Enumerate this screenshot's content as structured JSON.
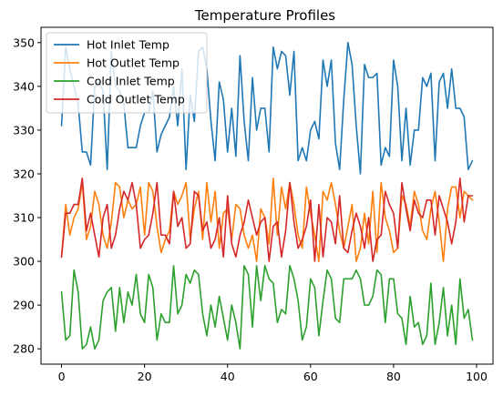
{
  "chart_data": {
    "type": "line",
    "title": "Temperature Profiles",
    "xlabel": "",
    "ylabel": "",
    "xlim": [
      -4.95,
      103.95
    ],
    "ylim": [
      276.5,
      353.5
    ],
    "xticks": [
      0,
      20,
      40,
      60,
      80,
      100
    ],
    "yticks": [
      280,
      290,
      300,
      310,
      320,
      330,
      340,
      350
    ],
    "grid": false,
    "legend_position": "top-left",
    "series": [
      {
        "name": "Hot Inlet Temp",
        "color": "#1f77b4",
        "values": [
          331,
          349,
          344,
          340,
          336,
          325,
          325,
          322,
          340,
          341,
          339,
          321,
          348,
          340,
          339,
          336,
          326,
          326,
          326,
          331,
          334,
          334,
          339,
          325,
          329,
          331,
          333,
          340,
          331,
          344,
          321,
          338,
          332,
          348,
          349,
          344,
          332,
          323,
          341,
          337,
          325,
          335,
          324,
          347,
          332,
          323,
          342,
          330,
          335,
          335,
          325,
          349,
          344,
          348,
          347,
          338,
          348,
          323,
          326,
          323,
          330,
          332,
          328,
          346,
          340,
          346,
          327,
          321,
          337,
          350,
          345,
          331,
          320,
          345,
          342,
          342,
          343,
          322,
          326,
          324,
          346,
          340,
          323,
          335,
          322,
          330,
          330,
          342,
          340,
          343,
          323,
          341,
          343,
          335,
          344,
          335,
          335,
          333,
          321,
          323
        ]
      },
      {
        "name": "Hot Outlet Temp",
        "color": "#ff7f0e",
        "values": [
          301,
          313,
          306,
          310,
          312,
          318,
          305,
          308,
          316,
          313,
          306,
          303,
          309,
          318,
          317,
          310,
          314,
          312,
          313,
          317,
          306,
          318,
          316,
          308,
          302,
          305,
          307,
          316,
          313,
          315,
          318,
          305,
          312,
          316,
          305,
          318,
          309,
          316,
          303,
          311,
          312,
          305,
          313,
          312,
          306,
          303,
          306,
          300,
          312,
          310,
          304,
          319,
          306,
          317,
          312,
          318,
          313,
          306,
          303,
          317,
          311,
          306,
          300,
          316,
          314,
          318,
          313,
          307,
          303,
          308,
          313,
          300,
          303,
          311,
          304,
          316,
          302,
          318,
          310,
          307,
          302,
          303,
          315,
          313,
          308,
          316,
          313,
          307,
          305,
          312,
          316,
          309,
          300,
          312,
          317,
          317,
          310,
          316,
          315,
          314
        ]
      },
      {
        "name": "Cold Inlet Temp",
        "color": "#2ca02c",
        "values": [
          293,
          282,
          283,
          298,
          293,
          280,
          281,
          285,
          280,
          282,
          291,
          293,
          294,
          284,
          294,
          286,
          293,
          290,
          297,
          288,
          286,
          297,
          294,
          282,
          288,
          286,
          286,
          299,
          288,
          290,
          297,
          295,
          298,
          297,
          288,
          283,
          290,
          285,
          292,
          287,
          282,
          290,
          286,
          280,
          299,
          297,
          285,
          299,
          291,
          299,
          296,
          295,
          286,
          289,
          288,
          299,
          296,
          291,
          282,
          285,
          296,
          294,
          283,
          291,
          298,
          296,
          287,
          286,
          296,
          296,
          296,
          298,
          296,
          290,
          290,
          292,
          298,
          297,
          286,
          296,
          296,
          288,
          287,
          281,
          292,
          285,
          286,
          281,
          283,
          295,
          281,
          286,
          294,
          283,
          290,
          281,
          296,
          287,
          289,
          282
        ]
      },
      {
        "name": "Cold Outlet Temp",
        "color": "#d62728",
        "values": [
          301,
          311,
          311,
          313,
          313,
          319,
          307,
          311,
          306,
          301,
          310,
          313,
          303,
          306,
          312,
          316,
          314,
          318,
          313,
          303,
          305,
          306,
          311,
          318,
          306,
          306,
          304,
          316,
          308,
          310,
          303,
          304,
          316,
          315,
          307,
          309,
          303,
          305,
          310,
          301,
          315,
          304,
          301,
          306,
          309,
          314,
          310,
          306,
          309,
          310,
          300,
          308,
          309,
          301,
          307,
          318,
          309,
          303,
          305,
          308,
          314,
          300,
          313,
          301,
          310,
          309,
          304,
          315,
          303,
          302,
          307,
          311,
          308,
          303,
          310,
          300,
          305,
          306,
          316,
          313,
          311,
          303,
          318,
          312,
          307,
          314,
          311,
          310,
          314,
          314,
          306,
          315,
          312,
          309,
          304,
          309,
          319,
          309,
          315,
          315
        ]
      }
    ]
  }
}
